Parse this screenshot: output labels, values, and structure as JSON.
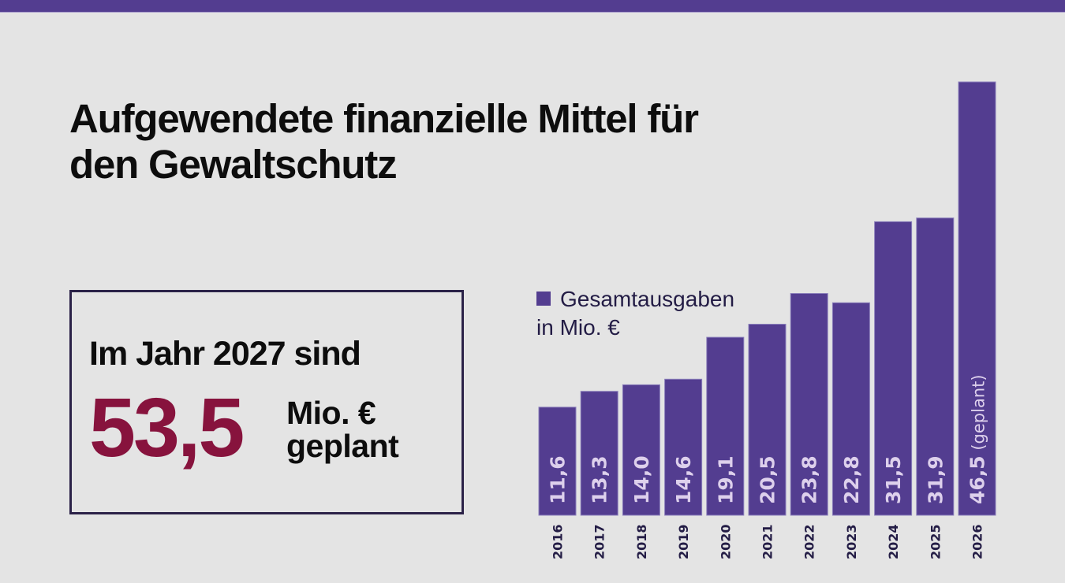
{
  "header": {
    "bar_color": "#533d90"
  },
  "title_line1": "Aufgewendete finanzielle Mittel für",
  "title_line2": "den Gewaltschutz",
  "highlight": {
    "line1": "Im Jahr 2027 sind",
    "value": "53,5",
    "unit_line1": "Mio. €",
    "unit_line2": "geplant",
    "value_color": "#87133d"
  },
  "legend": {
    "line1": "Gesamtausgaben",
    "line2": "in Mio. €"
  },
  "chart_data": {
    "type": "bar",
    "title": "Aufgewendete finanzielle Mittel für den Gewaltschutz",
    "xlabel": "",
    "ylabel": "Gesamtausgaben in Mio. €",
    "categories": [
      "2016",
      "2017",
      "2018",
      "2019",
      "2020",
      "2021",
      "2022",
      "2023",
      "2024",
      "2025",
      "2026"
    ],
    "values": [
      11.6,
      13.3,
      14.0,
      14.6,
      19.1,
      20.5,
      23.8,
      22.8,
      31.5,
      31.9,
      46.5
    ],
    "value_labels": [
      "11,6",
      "13,3",
      "14,0",
      "14,6",
      "19,1",
      "20,5",
      "23,8",
      "22,8",
      "31,5",
      "31,9",
      "46,5"
    ],
    "annotations": [
      "",
      "",
      "",
      "",
      "",
      "",
      "",
      "",
      "",
      "",
      "(geplant)"
    ],
    "series": [
      {
        "name": "Gesamtausgaben in Mio. €",
        "color": "#533d90"
      }
    ],
    "ylim": [
      0,
      46.5
    ],
    "grid": false,
    "legend_position": "top-left"
  }
}
